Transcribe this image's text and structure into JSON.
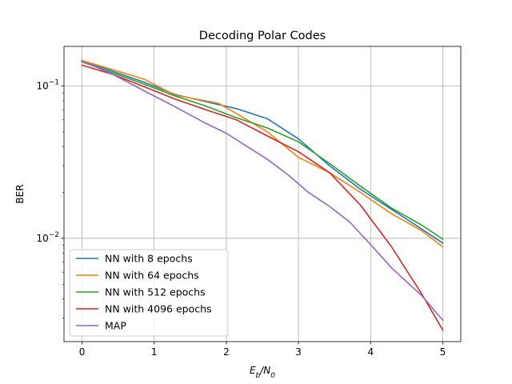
{
  "chart_data": {
    "type": "line",
    "title": "Decoding Polar Codes",
    "ylabel": "BER",
    "xlim": [
      -0.25,
      5.25
    ],
    "ylim": [
      0.0021,
      0.182
    ],
    "yscale": "log",
    "grid": true,
    "legend_position": "lower-left",
    "x_ticks": [
      0,
      1,
      2,
      3,
      4,
      5
    ],
    "x_tick_labels": [
      "0",
      "1",
      "2",
      "3",
      "4",
      "5"
    ],
    "y_ticks": [
      0.1,
      0.01
    ],
    "series": [
      {
        "name": "NN with 8 epochs",
        "color": "#1f77b4",
        "x": [
          0,
          0.43,
          0.86,
          1.29,
          1.71,
          2.14,
          2.57,
          3.0,
          3.43,
          3.86,
          4.29,
          4.71,
          5.0
        ],
        "y": [
          0.147,
          0.125,
          0.106,
          0.088,
          0.079,
          0.071,
          0.061,
          0.045,
          0.03,
          0.021,
          0.0155,
          0.0115,
          0.0093
        ]
      },
      {
        "name": "NN with 64 epochs",
        "color": "#ff7f0e",
        "x": [
          0,
          0.43,
          0.86,
          1.29,
          1.71,
          1.89,
          2.14,
          2.57,
          3.0,
          3.43,
          3.86,
          4.29,
          4.71,
          5.0
        ],
        "y": [
          0.147,
          0.128,
          0.111,
          0.087,
          0.08,
          0.077,
          0.066,
          0.05,
          0.034,
          0.027,
          0.02,
          0.0145,
          0.0112,
          0.0088
        ]
      },
      {
        "name": "NN with 512 epochs",
        "color": "#2ca02c",
        "x": [
          0,
          0.43,
          0.86,
          1.29,
          1.71,
          2.14,
          2.57,
          3.0,
          3.43,
          3.86,
          4.29,
          4.71,
          5.0
        ],
        "y": [
          0.144,
          0.122,
          0.103,
          0.086,
          0.074,
          0.062,
          0.053,
          0.043,
          0.031,
          0.022,
          0.0158,
          0.0122,
          0.0099
        ]
      },
      {
        "name": "NN with 4096 epochs",
        "color": "#d62728",
        "x": [
          0,
          0.43,
          0.86,
          1.29,
          1.71,
          2.14,
          2.57,
          3.0,
          3.43,
          3.86,
          4.29,
          4.71,
          5.0
        ],
        "y": [
          0.137,
          0.119,
          0.099,
          0.082,
          0.07,
          0.06,
          0.047,
          0.037,
          0.027,
          0.0165,
          0.0088,
          0.0043,
          0.0025
        ]
      },
      {
        "name": "MAP",
        "color": "#9467bd",
        "x": [
          0,
          0.43,
          0.86,
          1.29,
          1.71,
          2.0,
          2.29,
          2.57,
          2.86,
          3.14,
          3.43,
          3.71,
          4.0,
          4.29,
          4.71,
          5.0
        ],
        "y": [
          0.146,
          0.119,
          0.093,
          0.073,
          0.057,
          0.049,
          0.04,
          0.033,
          0.026,
          0.02,
          0.0162,
          0.0128,
          0.0091,
          0.0064,
          0.0042,
          0.0029
        ]
      }
    ]
  }
}
